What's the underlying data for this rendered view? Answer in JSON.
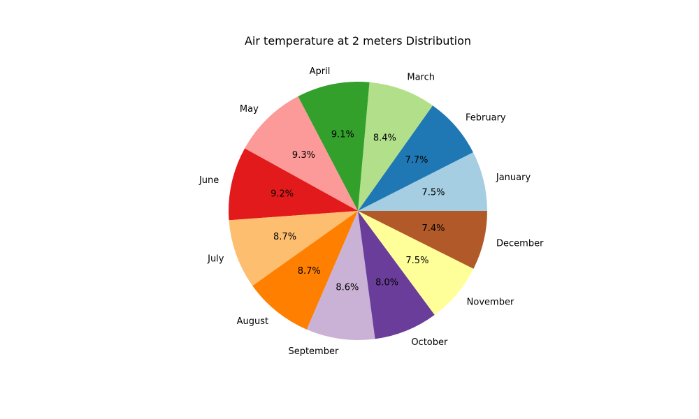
{
  "chart_data": {
    "type": "pie",
    "title": "Air temperature at 2 meters Distribution",
    "categories": [
      "January",
      "February",
      "March",
      "April",
      "May",
      "June",
      "July",
      "August",
      "September",
      "October",
      "November",
      "December"
    ],
    "values": [
      7.5,
      7.7,
      8.4,
      9.1,
      9.3,
      9.2,
      8.7,
      8.7,
      8.6,
      8.0,
      7.5,
      7.4
    ],
    "value_labels": [
      "7.5%",
      "7.7%",
      "8.4%",
      "9.1%",
      "9.3%",
      "9.2%",
      "8.7%",
      "8.7%",
      "8.6%",
      "8.0%",
      "7.5%",
      "7.4%"
    ],
    "colors": [
      "#a6cee3",
      "#1f78b4",
      "#b2df8a",
      "#33a02c",
      "#fb9a99",
      "#e31a1c",
      "#fdbf6f",
      "#ff7f00",
      "#cab2d6",
      "#6a3d9a",
      "#ffff99",
      "#b15928"
    ],
    "start_angle_deg": 0,
    "direction": "counterclockwise",
    "legend": "none"
  }
}
